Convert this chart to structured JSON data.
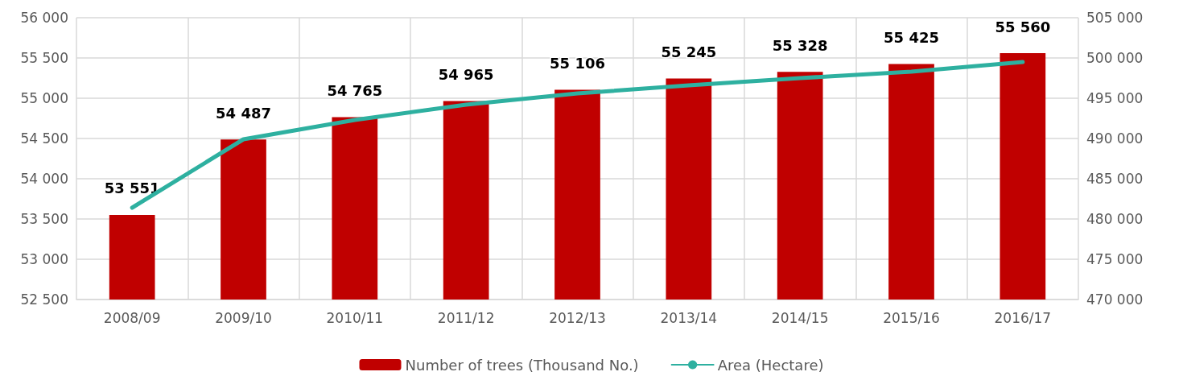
{
  "chart_data": {
    "type": "bar",
    "categories": [
      "2008/09",
      "2009/10",
      "2010/11",
      "2011/12",
      "2012/13",
      "2013/14",
      "2014/15",
      "2015/16",
      "2016/17"
    ],
    "series": [
      {
        "name": "Number of trees (Thousand No.)",
        "color": "#c00000",
        "values": [
          53551,
          54487,
          54765,
          54965,
          55106,
          55245,
          55328,
          55425,
          55560
        ],
        "value_labels": [
          "53 551",
          "54 487",
          "54 765",
          "54 965",
          "55 106",
          "55 245",
          "55 328",
          "55 425",
          "55 560"
        ]
      },
      {
        "name": "Area (Hectare)",
        "type": "line",
        "axis": "y2",
        "color": "#2eb0a0",
        "values": [
          481400,
          489900,
          492300,
          494200,
          495600,
          496600,
          497500,
          498300,
          499500
        ]
      }
    ],
    "ylim": [
      52500,
      56000
    ],
    "yticks": [
      {
        "value": 52500,
        "label": "52 500"
      },
      {
        "value": 53000,
        "label": "53 000"
      },
      {
        "value": 53500,
        "label": "53 500"
      },
      {
        "value": 54000,
        "label": "54 000"
      },
      {
        "value": 54500,
        "label": "54 500"
      },
      {
        "value": 55000,
        "label": "55 000"
      },
      {
        "value": 55500,
        "label": "55 500"
      },
      {
        "value": 56000,
        "label": "56 000"
      }
    ],
    "y2lim": [
      470000,
      505000
    ],
    "y2ticks": [
      {
        "value": 470000,
        "label": "470 000"
      },
      {
        "value": 475000,
        "label": "475 000"
      },
      {
        "value": 480000,
        "label": "480 000"
      },
      {
        "value": 485000,
        "label": "485 000"
      },
      {
        "value": 490000,
        "label": "490 000"
      },
      {
        "value": 495000,
        "label": "495 000"
      },
      {
        "value": 500000,
        "label": "500 000"
      },
      {
        "value": 505000,
        "label": "505 000"
      }
    ],
    "grid": true,
    "legend": "bottom",
    "marker": "none"
  }
}
